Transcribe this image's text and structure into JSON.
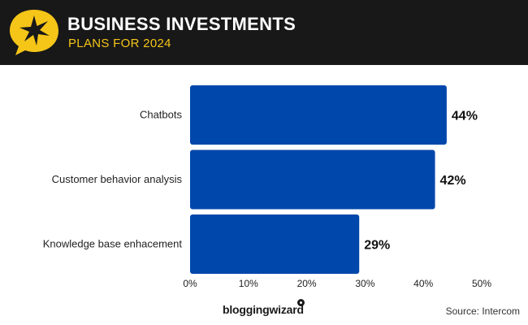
{
  "header": {
    "title": "BUSINESS INVESTMENTS",
    "subtitle": "PLANS FOR 2024",
    "icon": "star-speech-bubble-icon",
    "accent_color": "#f5c518",
    "background_color": "#181818"
  },
  "chart_data": {
    "type": "bar",
    "orientation": "horizontal",
    "categories": [
      "Chatbots",
      "Customer behavior analysis",
      "Knowledge base enhacement"
    ],
    "values": [
      44,
      42,
      29
    ],
    "value_labels": [
      "44%",
      "42%",
      "29%"
    ],
    "xlim": [
      0,
      50
    ],
    "xticks": [
      "0%",
      "10%",
      "20%",
      "30%",
      "40%",
      "50%"
    ],
    "grid": false,
    "legend": "none",
    "bar_color": "#0047ab"
  },
  "footer": {
    "brand": "bloggingwizard",
    "source": "Source: Intercom"
  }
}
